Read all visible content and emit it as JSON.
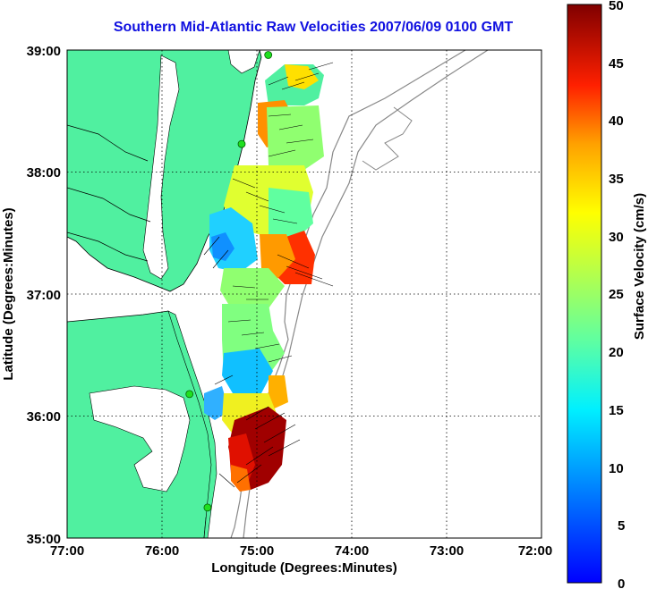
{
  "title": "Southern Mid-Atlantic Raw Velocities 2007/06/09 0100 GMT",
  "x_axis": {
    "label": "Longitude (Degrees:Minutes)",
    "ticks": [
      "77:00",
      "76:00",
      "75:00",
      "74:00",
      "73:00",
      "72:00"
    ]
  },
  "y_axis": {
    "label": "Latitude (Degrees:Minutes)",
    "ticks": [
      "39:00",
      "38:00",
      "37:00",
      "36:00",
      "35:00"
    ]
  },
  "colorbar": {
    "label": "Surface Velocity (cm/s)",
    "ticks": [
      "50",
      "45",
      "40",
      "35",
      "30",
      "25",
      "20",
      "15",
      "10",
      "5",
      "0"
    ],
    "min": 0,
    "max": 50
  },
  "chart_data": {
    "type": "heatmap",
    "title": "Southern Mid-Atlantic Raw Velocities 2007/06/09 0100 GMT",
    "xlabel": "Longitude (Degrees:Minutes)",
    "ylabel": "Latitude (Degrees:Minutes)",
    "xlim": [
      -77,
      -72
    ],
    "ylim": [
      35,
      39
    ],
    "value_range": [
      0,
      50
    ],
    "value_label": "Surface Velocity (cm/s)",
    "grid": true,
    "land_color": "#50f0a0",
    "colormap": "jet",
    "regions": [
      {
        "lon": -74.6,
        "lat": 38.7,
        "speed": 18
      },
      {
        "lon": -74.8,
        "lat": 38.5,
        "speed": 30
      },
      {
        "lon": -74.9,
        "lat": 38.3,
        "speed": 22
      },
      {
        "lon": -75.0,
        "lat": 37.8,
        "speed": 26
      },
      {
        "lon": -75.3,
        "lat": 37.3,
        "speed": 12
      },
      {
        "lon": -74.6,
        "lat": 37.2,
        "speed": 42
      },
      {
        "lon": -75.0,
        "lat": 36.8,
        "speed": 22
      },
      {
        "lon": -74.9,
        "lat": 36.3,
        "speed": 10
      },
      {
        "lon": -74.8,
        "lat": 36.15,
        "speed": 40
      },
      {
        "lon": -75.0,
        "lat": 35.8,
        "speed": 48
      },
      {
        "lon": -75.1,
        "lat": 35.55,
        "speed": 44
      }
    ],
    "stations": [
      {
        "lon": -74.88,
        "lat": 38.96
      },
      {
        "lon": -75.16,
        "lat": 38.23
      },
      {
        "lon": -75.71,
        "lat": 36.18
      },
      {
        "lon": -75.52,
        "lat": 35.25
      }
    ]
  }
}
